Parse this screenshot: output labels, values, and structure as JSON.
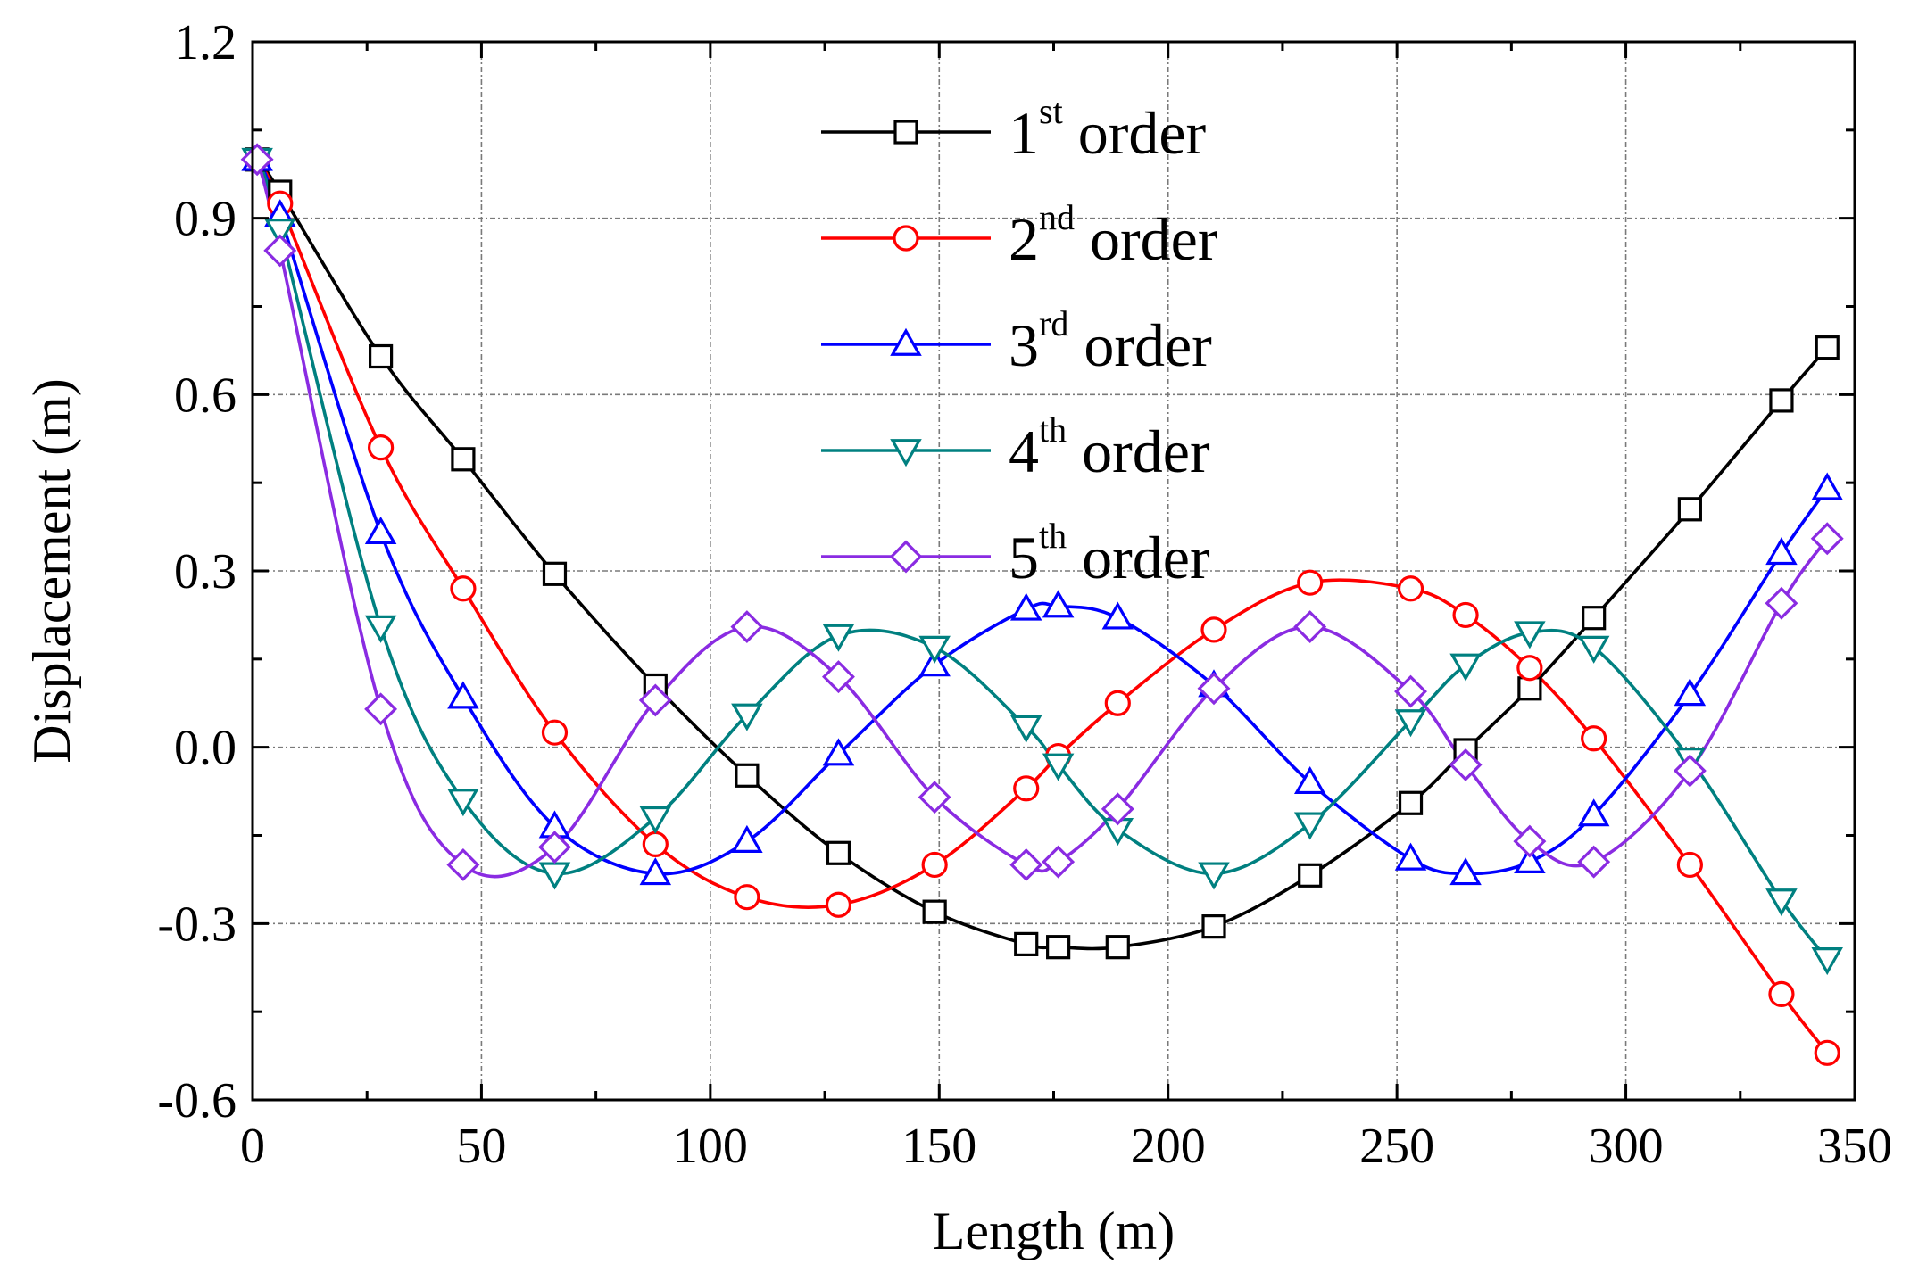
{
  "chart_data": {
    "type": "line",
    "xlabel": "Length (m)",
    "ylabel": "Displacement (m)",
    "xlim": [
      0,
      350
    ],
    "ylim": [
      -0.6,
      1.2
    ],
    "x_ticks": [
      0,
      50,
      100,
      150,
      200,
      250,
      300,
      350
    ],
    "y_ticks": [
      -0.6,
      -0.3,
      0.0,
      0.3,
      0.6,
      0.9,
      1.2
    ],
    "x_tick_labels": [
      "0",
      "50",
      "100",
      "150",
      "200",
      "250",
      "300",
      "350"
    ],
    "y_tick_labels": [
      "-0.6",
      "-0.3",
      "0.0",
      "0.3",
      "0.6",
      "0.9",
      "1.2"
    ],
    "grid": true,
    "legend_position": "top-center",
    "series": [
      {
        "name": "1st order",
        "name_base": "1",
        "name_sup": "st",
        "name_rest": " order",
        "color": "#000000",
        "marker": "square",
        "x": [
          1,
          6,
          28,
          46,
          66,
          88,
          108,
          128,
          149,
          169,
          176,
          189,
          210,
          231,
          253,
          265,
          279,
          293,
          314,
          334,
          344
        ],
        "y": [
          1.0,
          0.945,
          0.665,
          0.49,
          0.295,
          0.105,
          -0.048,
          -0.18,
          -0.28,
          -0.335,
          -0.34,
          -0.34,
          -0.305,
          -0.218,
          -0.095,
          -0.005,
          0.1,
          0.22,
          0.405,
          0.59,
          0.68
        ]
      },
      {
        "name": "2nd order",
        "name_base": "2",
        "name_sup": "nd",
        "name_rest": " order",
        "color": "#ff0000",
        "marker": "circle",
        "x": [
          1,
          6,
          28,
          46,
          66,
          88,
          108,
          128,
          149,
          169,
          176,
          189,
          210,
          231,
          253,
          265,
          279,
          293,
          314,
          334,
          344
        ],
        "y": [
          1.0,
          0.925,
          0.51,
          0.27,
          0.025,
          -0.165,
          -0.255,
          -0.268,
          -0.2,
          -0.07,
          -0.015,
          0.075,
          0.2,
          0.28,
          0.27,
          0.225,
          0.135,
          0.015,
          -0.2,
          -0.42,
          -0.52
        ]
      },
      {
        "name": "3rd order",
        "name_base": "3",
        "name_sup": "rd",
        "name_rest": " order",
        "color": "#0000ff",
        "marker": "triangle-up",
        "x": [
          1,
          6,
          28,
          46,
          66,
          88,
          108,
          128,
          149,
          169,
          176,
          189,
          210,
          231,
          253,
          265,
          279,
          293,
          314,
          334,
          344
        ],
        "y": [
          1.0,
          0.905,
          0.365,
          0.085,
          -0.135,
          -0.215,
          -0.16,
          -0.012,
          0.14,
          0.235,
          0.24,
          0.22,
          0.105,
          -0.06,
          -0.19,
          -0.215,
          -0.195,
          -0.115,
          0.09,
          0.33,
          0.44
        ]
      },
      {
        "name": "4th order",
        "name_base": "4",
        "name_sup": "th",
        "name_rest": " order",
        "color": "#008080",
        "marker": "triangle-down",
        "x": [
          1,
          6,
          28,
          46,
          66,
          88,
          108,
          128,
          149,
          169,
          176,
          189,
          210,
          231,
          253,
          265,
          279,
          293,
          314,
          334,
          344
        ],
        "y": [
          1.0,
          0.88,
          0.205,
          -0.09,
          -0.215,
          -0.12,
          0.055,
          0.19,
          0.17,
          0.035,
          -0.03,
          -0.14,
          -0.215,
          -0.13,
          0.045,
          0.14,
          0.195,
          0.17,
          -0.02,
          -0.26,
          -0.36
        ]
      },
      {
        "name": "5th order",
        "name_base": "5",
        "name_sup": "th",
        "name_rest": " order",
        "color": "#8a2be2",
        "marker": "diamond",
        "x": [
          1,
          6,
          28,
          46,
          66,
          88,
          108,
          128,
          149,
          169,
          176,
          189,
          210,
          231,
          253,
          265,
          279,
          293,
          314,
          334,
          344
        ],
        "y": [
          1.0,
          0.845,
          0.065,
          -0.2,
          -0.17,
          0.08,
          0.205,
          0.12,
          -0.085,
          -0.2,
          -0.195,
          -0.105,
          0.1,
          0.205,
          0.095,
          -0.03,
          -0.16,
          -0.195,
          -0.04,
          0.245,
          0.355
        ]
      }
    ]
  }
}
